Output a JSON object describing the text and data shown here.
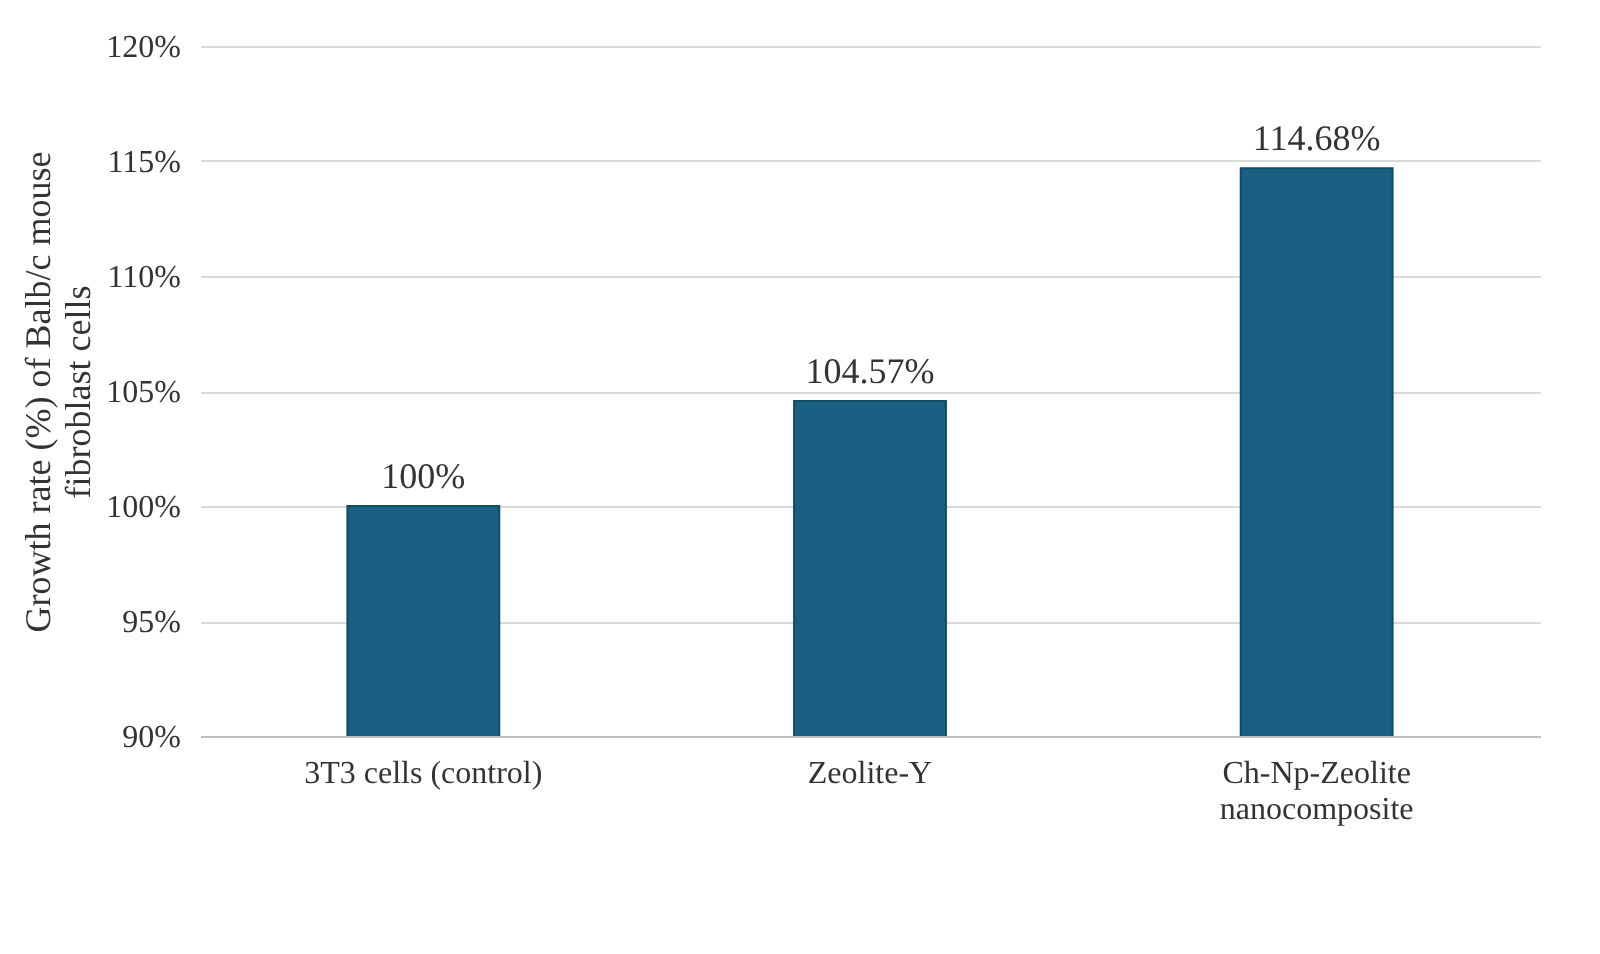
{
  "chart_data": {
    "type": "bar",
    "categories": [
      "3T3 cells (control)",
      "Zeolite-Y",
      "Ch-Np-Zeolite nanocomposite"
    ],
    "values": [
      100,
      104.57,
      114.68
    ],
    "value_labels": [
      "100%",
      "104.57%",
      "114.68%"
    ],
    "color": "#1a6082",
    "ylabel": "Growth rate (%) of Balb/c mouse fibroblast cells",
    "ylim": [
      90,
      120
    ],
    "yticks": [
      {
        "value": 90,
        "label": "90%"
      },
      {
        "value": 95,
        "label": "95%"
      },
      {
        "value": 100,
        "label": "100%"
      },
      {
        "value": 105,
        "label": "105%"
      },
      {
        "value": 110,
        "label": "110%"
      },
      {
        "value": 115,
        "label": "115%"
      },
      {
        "value": 120,
        "label": "120%"
      }
    ],
    "grid": "y"
  }
}
